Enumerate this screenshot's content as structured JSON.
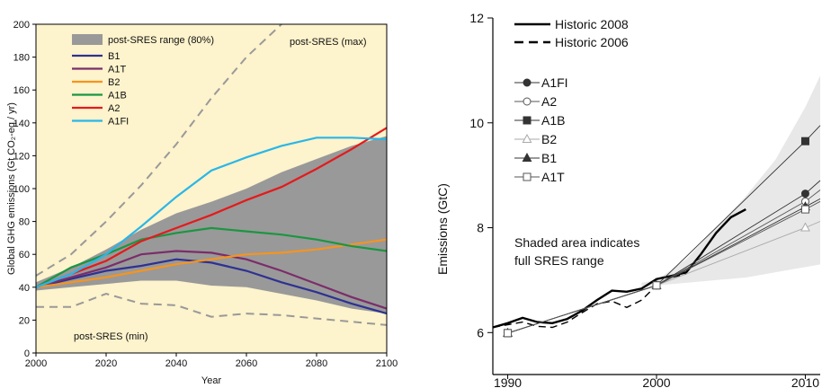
{
  "chart_data": [
    {
      "type": "line",
      "title": "",
      "xlabel": "Year",
      "ylabel": "Global GHG emissions (Gt CO₂-eq / yr)",
      "xlim": [
        2000,
        2100
      ],
      "ylim": [
        0,
        200
      ],
      "x_ticks": [
        2000,
        2020,
        2040,
        2060,
        2080,
        2100
      ],
      "y_ticks": [
        0,
        20,
        40,
        60,
        80,
        100,
        120,
        140,
        160,
        180,
        200
      ],
      "grid": false,
      "background": "#fdf3cc",
      "legend_position": "top-left",
      "band": {
        "name": "post-SRES range (80%)",
        "color": "#999999",
        "x": [
          2000,
          2010,
          2020,
          2030,
          2040,
          2050,
          2060,
          2070,
          2080,
          2090,
          2100
        ],
        "lower": [
          38,
          40,
          42,
          44,
          44,
          41,
          40,
          36,
          32,
          27,
          24
        ],
        "upper": [
          43,
          52,
          63,
          75,
          85,
          92,
          100,
          110,
          118,
          126,
          132
        ]
      },
      "series": [
        {
          "name": "B1",
          "color": "#2e3192",
          "style": "solid",
          "x": [
            2000,
            2010,
            2020,
            2030,
            2040,
            2050,
            2060,
            2070,
            2080,
            2090,
            2100
          ],
          "y": [
            40,
            45,
            50,
            53,
            57,
            55,
            50,
            43,
            37,
            30,
            24
          ]
        },
        {
          "name": "A1T",
          "color": "#7b2d6b",
          "style": "solid",
          "x": [
            2000,
            2010,
            2020,
            2030,
            2040,
            2050,
            2060,
            2070,
            2080,
            2090,
            2100
          ],
          "y": [
            40,
            46,
            52,
            60,
            62,
            61,
            57,
            50,
            42,
            34,
            27
          ]
        },
        {
          "name": "B2",
          "color": "#f7941d",
          "style": "solid",
          "x": [
            2000,
            2010,
            2020,
            2030,
            2040,
            2050,
            2060,
            2070,
            2080,
            2090,
            2100
          ],
          "y": [
            40,
            43,
            46,
            50,
            54,
            57,
            60,
            61,
            63,
            66,
            69
          ]
        },
        {
          "name": "A1B",
          "color": "#1a9641",
          "style": "solid",
          "x": [
            2000,
            2010,
            2020,
            2030,
            2040,
            2050,
            2060,
            2070,
            2080,
            2090,
            2100
          ],
          "y": [
            40,
            52,
            60,
            69,
            73,
            76,
            74,
            72,
            69,
            65,
            62
          ]
        },
        {
          "name": "A2",
          "color": "#e41a1c",
          "style": "solid",
          "x": [
            2000,
            2010,
            2020,
            2030,
            2040,
            2050,
            2060,
            2070,
            2080,
            2090,
            2100
          ],
          "y": [
            40,
            48,
            56,
            68,
            76,
            84,
            93,
            101,
            112,
            124,
            137
          ]
        },
        {
          "name": "A1FI",
          "color": "#29b6e8",
          "style": "solid",
          "x": [
            2000,
            2010,
            2020,
            2030,
            2040,
            2050,
            2060,
            2070,
            2080,
            2090,
            2100
          ],
          "y": [
            40,
            48,
            60,
            77,
            95,
            111,
            119,
            126,
            131,
            131,
            130
          ]
        },
        {
          "name": "post-SRES (max)",
          "color": "#999999",
          "style": "dashed",
          "x": [
            2000,
            2010,
            2020,
            2030,
            2040,
            2050,
            2060,
            2070
          ],
          "y": [
            47,
            60,
            80,
            102,
            127,
            155,
            180,
            200
          ]
        },
        {
          "name": "post-SRES (min)",
          "color": "#999999",
          "style": "dashed",
          "x": [
            2000,
            2010,
            2020,
            2030,
            2040,
            2050,
            2060,
            2070,
            2080,
            2090,
            2100
          ],
          "y": [
            28,
            28,
            36,
            30,
            29,
            22,
            24,
            23,
            21,
            19,
            17
          ]
        }
      ],
      "annotations": [
        "post-SRES (max)",
        "post-SRES (min)"
      ]
    },
    {
      "type": "line",
      "title": "",
      "xlabel": "",
      "ylabel": "Emissions (GtC)",
      "xlim": [
        1989,
        2011
      ],
      "ylim": [
        5.2,
        12
      ],
      "x_ticks": [
        1990,
        2000,
        2010
      ],
      "y_ticks": [
        6,
        8,
        10,
        12
      ],
      "grid": false,
      "shaded_note": "Shaded area indicates full SRES range",
      "band": {
        "color": "#e8e8e8",
        "x": [
          1999,
          2000,
          2002,
          2004,
          2006,
          2008,
          2010,
          2011
        ],
        "lower": [
          6.85,
          6.9,
          6.95,
          7.0,
          7.05,
          7.15,
          7.25,
          7.3
        ],
        "upper": [
          6.95,
          7.0,
          7.4,
          8.0,
          8.6,
          9.3,
          10.3,
          10.9
        ]
      },
      "series": [
        {
          "name": "Historic 2008",
          "color": "#000000",
          "style": "solid",
          "width": 2.4,
          "x": [
            1989,
            1990,
            1991,
            1992,
            1993,
            1994,
            1995,
            1996,
            1997,
            1998,
            1999,
            2000,
            2001,
            2002,
            2003,
            2004,
            2005,
            2006
          ],
          "y": [
            6.1,
            6.18,
            6.28,
            6.2,
            6.18,
            6.26,
            6.42,
            6.62,
            6.8,
            6.78,
            6.84,
            7.02,
            7.08,
            7.15,
            7.5,
            7.9,
            8.2,
            8.35
          ]
        },
        {
          "name": "Historic 2006",
          "color": "#000000",
          "style": "dashed",
          "width": 1.4,
          "x": [
            1989,
            1990,
            1991,
            1992,
            1993,
            1994,
            1995,
            1996,
            1997,
            1998,
            1999,
            2000,
            2001,
            2002
          ],
          "y": [
            6.1,
            6.15,
            6.2,
            6.12,
            6.1,
            6.2,
            6.38,
            6.55,
            6.6,
            6.48,
            6.62,
            6.9,
            7.05,
            7.12
          ]
        },
        {
          "name": "A1FI",
          "color": "#333333",
          "marker": "filled-circle",
          "style": "solid",
          "x": [
            1990,
            2000,
            2010,
            2011
          ],
          "y": [
            5.99,
            6.9,
            8.65,
            8.9
          ]
        },
        {
          "name": "A2",
          "color": "#555555",
          "marker": "open-circle",
          "style": "solid",
          "x": [
            1990,
            2000,
            2010,
            2011
          ],
          "y": [
            5.99,
            6.9,
            8.5,
            8.72
          ]
        },
        {
          "name": "A1B",
          "color": "#333333",
          "marker": "filled-square",
          "style": "solid",
          "x": [
            1990,
            2000,
            2010,
            2011
          ],
          "y": [
            5.99,
            6.9,
            9.65,
            9.95
          ]
        },
        {
          "name": "B2",
          "color": "#aaaaaa",
          "marker": "open-triangle",
          "style": "solid",
          "x": [
            1990,
            2000,
            2010,
            2011
          ],
          "y": [
            5.99,
            6.9,
            8.0,
            8.12
          ]
        },
        {
          "name": "B1",
          "color": "#333333",
          "marker": "filled-triangle",
          "style": "solid",
          "x": [
            1990,
            2000,
            2010,
            2011
          ],
          "y": [
            5.99,
            6.9,
            8.4,
            8.55
          ]
        },
        {
          "name": "A1T",
          "color": "#555555",
          "marker": "open-square",
          "style": "solid",
          "x": [
            1990,
            2000,
            2010,
            2011
          ],
          "y": [
            5.99,
            6.9,
            8.35,
            8.5
          ]
        }
      ]
    }
  ]
}
